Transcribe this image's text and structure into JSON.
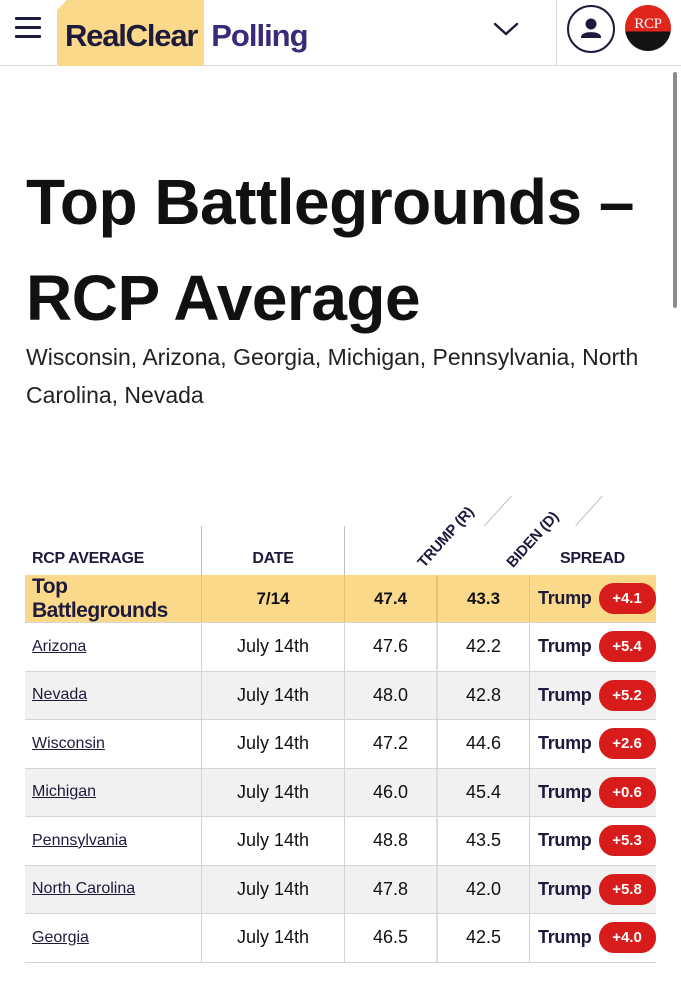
{
  "header": {
    "logo_part1": "RealClear",
    "logo_part2": "Polling",
    "badge_text": "RCP",
    "colors": {
      "brand_yellow": "#fbd98a",
      "brand_navy": "#1e1a3c",
      "spread_red": "#d81b1b"
    }
  },
  "page": {
    "title": "Top Battlegrounds – RCP Average",
    "subtitle": "Wisconsin, Arizona, Georgia, Michigan, Pennsylvania, North Carolina, Nevada"
  },
  "table": {
    "headers": {
      "rcp_average": "RCP AVERAGE",
      "date": "DATE",
      "trump": "TRUMP (R)",
      "biden": "BIDEN (D)",
      "spread": "SPREAD"
    },
    "average": {
      "name": "Top Battlegrounds",
      "date": "7/14",
      "trump": "47.4",
      "biden": "43.3",
      "leader": "Trump",
      "spread": "+4.1"
    },
    "rows": [
      {
        "name": "Arizona",
        "date": "July 14th",
        "trump": "47.6",
        "biden": "42.2",
        "leader": "Trump",
        "spread": "+5.4"
      },
      {
        "name": "Nevada",
        "date": "July 14th",
        "trump": "48.0",
        "biden": "42.8",
        "leader": "Trump",
        "spread": "+5.2"
      },
      {
        "name": "Wisconsin",
        "date": "July 14th",
        "trump": "47.2",
        "biden": "44.6",
        "leader": "Trump",
        "spread": "+2.6"
      },
      {
        "name": "Michigan",
        "date": "July 14th",
        "trump": "46.0",
        "biden": "45.4",
        "leader": "Trump",
        "spread": "+0.6"
      },
      {
        "name": "Pennsylvania",
        "date": "July 14th",
        "trump": "48.8",
        "biden": "43.5",
        "leader": "Trump",
        "spread": "+5.3"
      },
      {
        "name": "North Carolina",
        "date": "July 14th",
        "trump": "47.8",
        "biden": "42.0",
        "leader": "Trump",
        "spread": "+5.8"
      },
      {
        "name": "Georgia",
        "date": "July 14th",
        "trump": "46.5",
        "biden": "42.5",
        "leader": "Trump",
        "spread": "+4.0"
      }
    ]
  }
}
